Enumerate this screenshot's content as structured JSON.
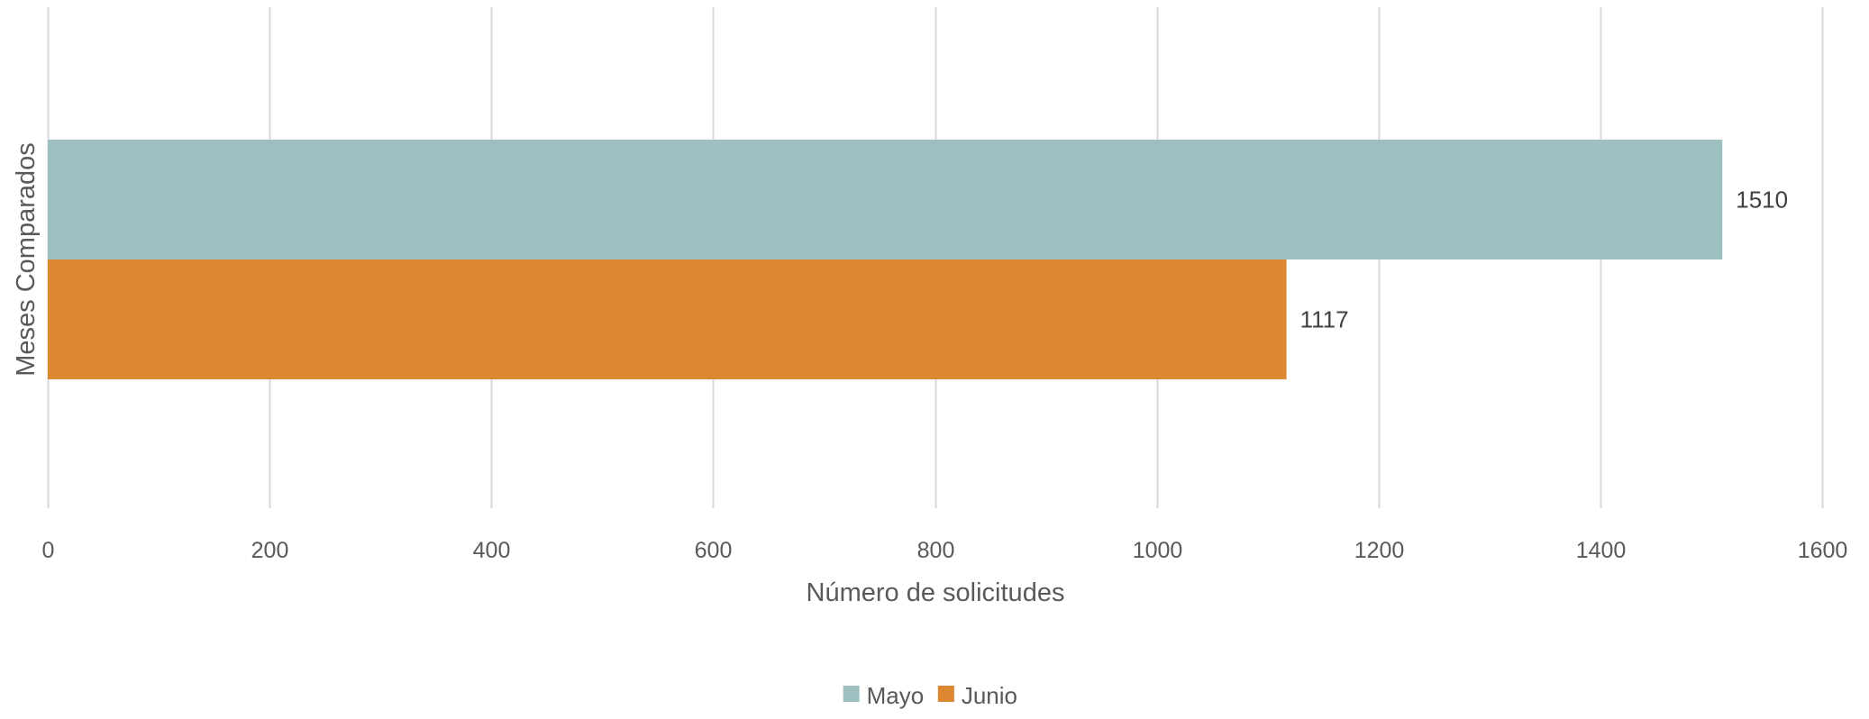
{
  "chart_data": {
    "type": "bar",
    "orientation": "horizontal",
    "xlabel": "Número de solicitudes",
    "ylabel": "Meses Comparados",
    "xlim": [
      0,
      1600
    ],
    "x_ticks": [
      0,
      200,
      400,
      600,
      800,
      1000,
      1200,
      1400,
      1600
    ],
    "grid": true,
    "legend_position": "bottom",
    "series": [
      {
        "name": "Mayo",
        "value": 1510,
        "label": "1510",
        "color": "#9dbfbf"
      },
      {
        "name": "Junio",
        "value": 1117,
        "label": "1117",
        "color": "#dd8731"
      }
    ]
  }
}
